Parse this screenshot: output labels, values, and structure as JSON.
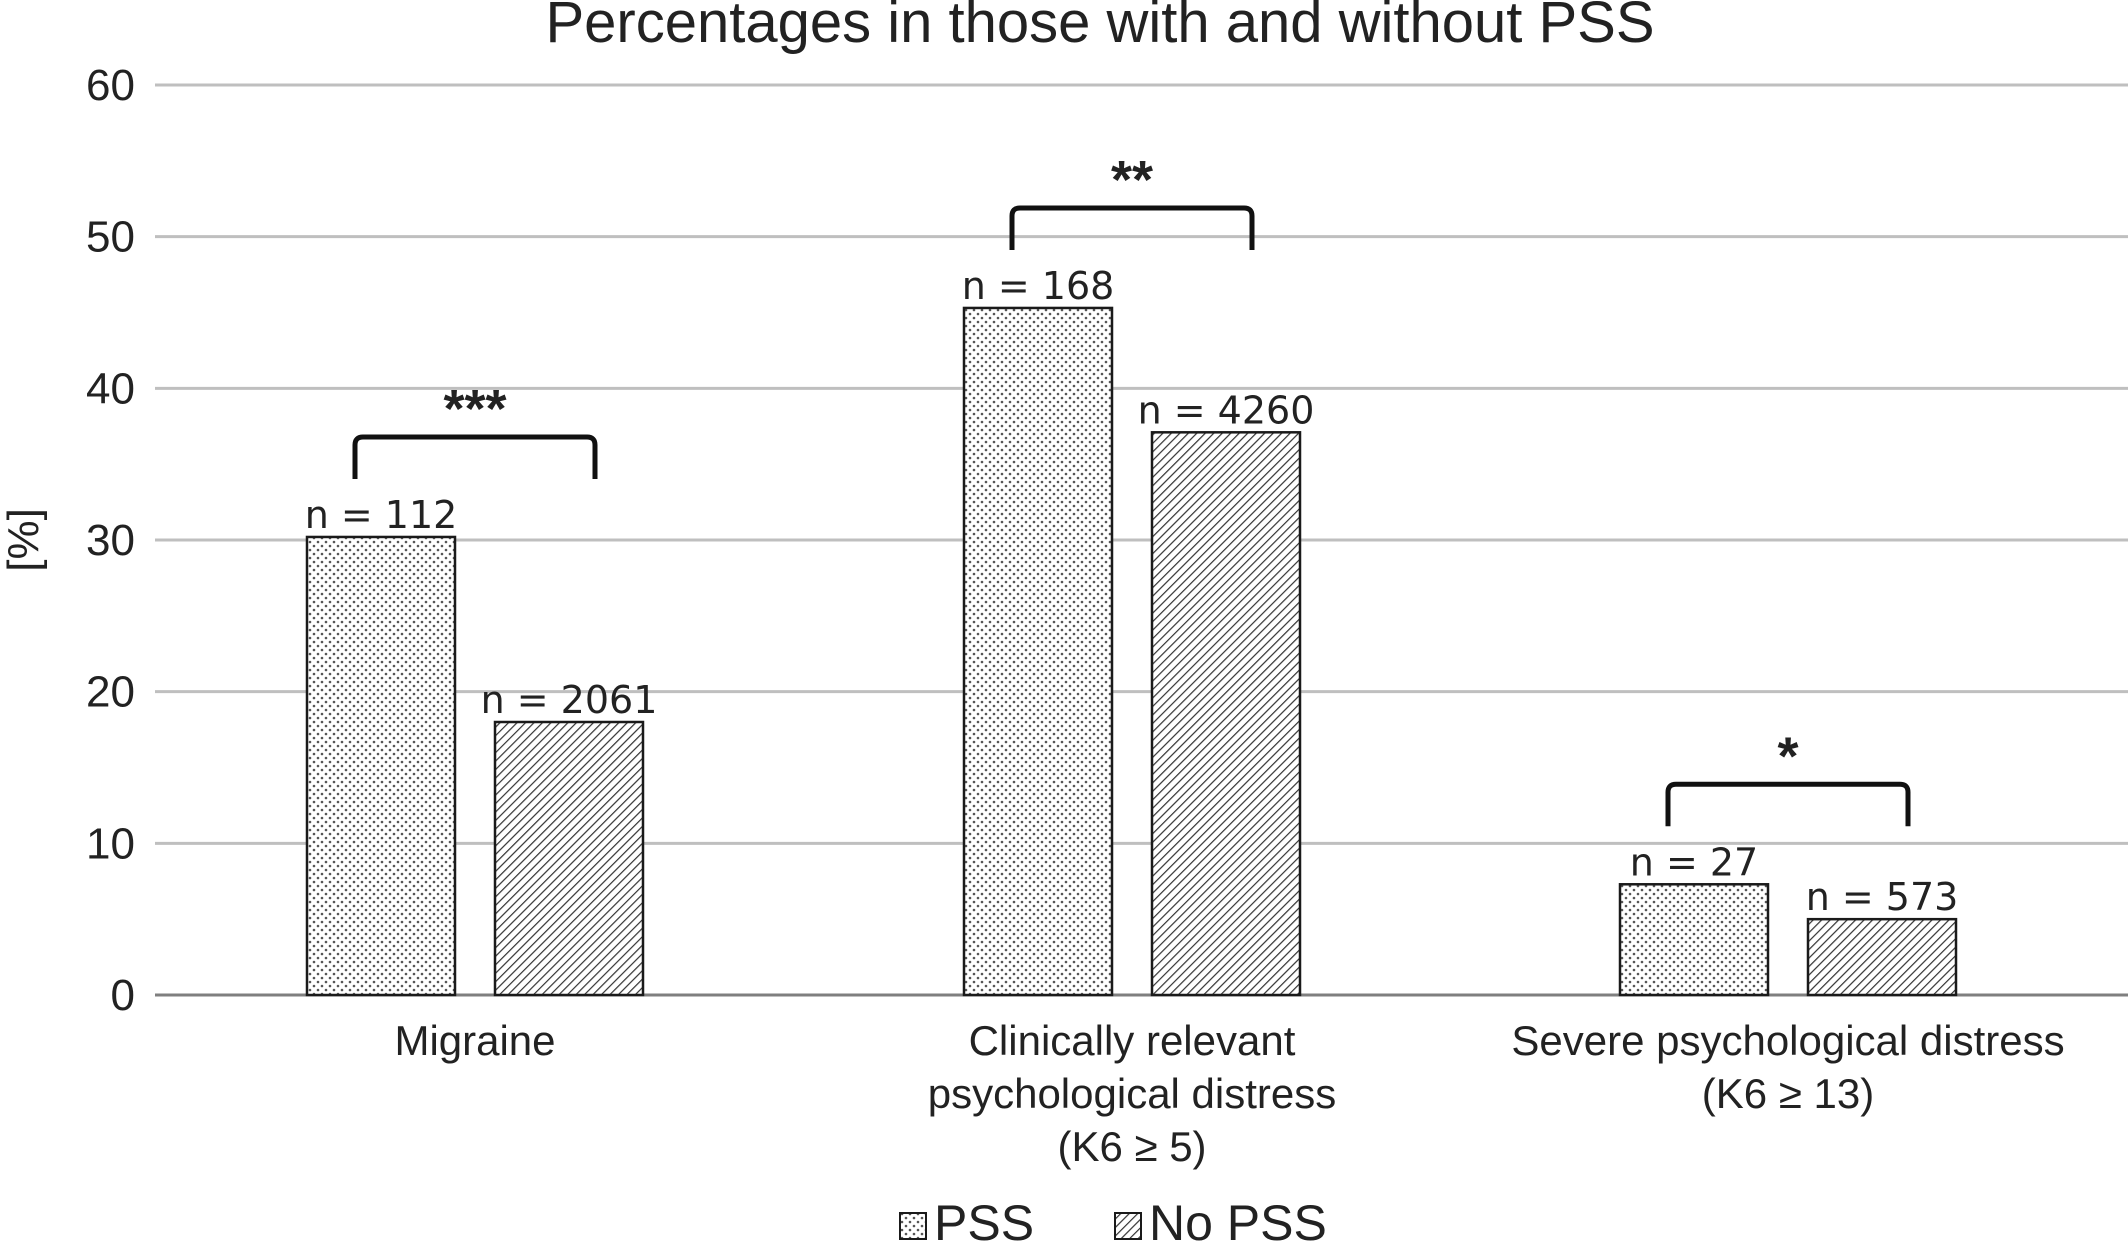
{
  "chart_data": {
    "type": "bar",
    "title": "Percentages in those with and without PSS",
    "ylabel": "[%]",
    "xlabel": "",
    "ylim": [
      0,
      60
    ],
    "yticks": [
      "0",
      "10",
      "20",
      "30",
      "40",
      "50",
      "60"
    ],
    "grid": true,
    "legend_position": "bottom",
    "categories": [
      [
        "Migraine"
      ],
      [
        "Clinically relevant",
        "psychological distress",
        "(K6 ≥ 5)"
      ],
      [
        "Severe psychological distress",
        "(K6 ≥ 13)"
      ]
    ],
    "series": [
      {
        "name": "PSS",
        "pattern": "dots",
        "values": [
          30.2,
          45.3,
          7.3
        ],
        "labels": [
          "n = 112",
          "n = 168",
          "n = 27"
        ]
      },
      {
        "name": "No PSS",
        "pattern": "diagonal-hatch",
        "values": [
          18.0,
          37.1,
          5.0
        ],
        "labels": [
          "n = 2061",
          "n = 4260",
          "n = 573"
        ]
      }
    ],
    "significance": [
      "***",
      "**",
      "*"
    ],
    "colors": {
      "gridline": "#bfbfbf",
      "bar_outline": "#1a1a1a",
      "bracket": "#111111",
      "text": "#222222"
    }
  }
}
